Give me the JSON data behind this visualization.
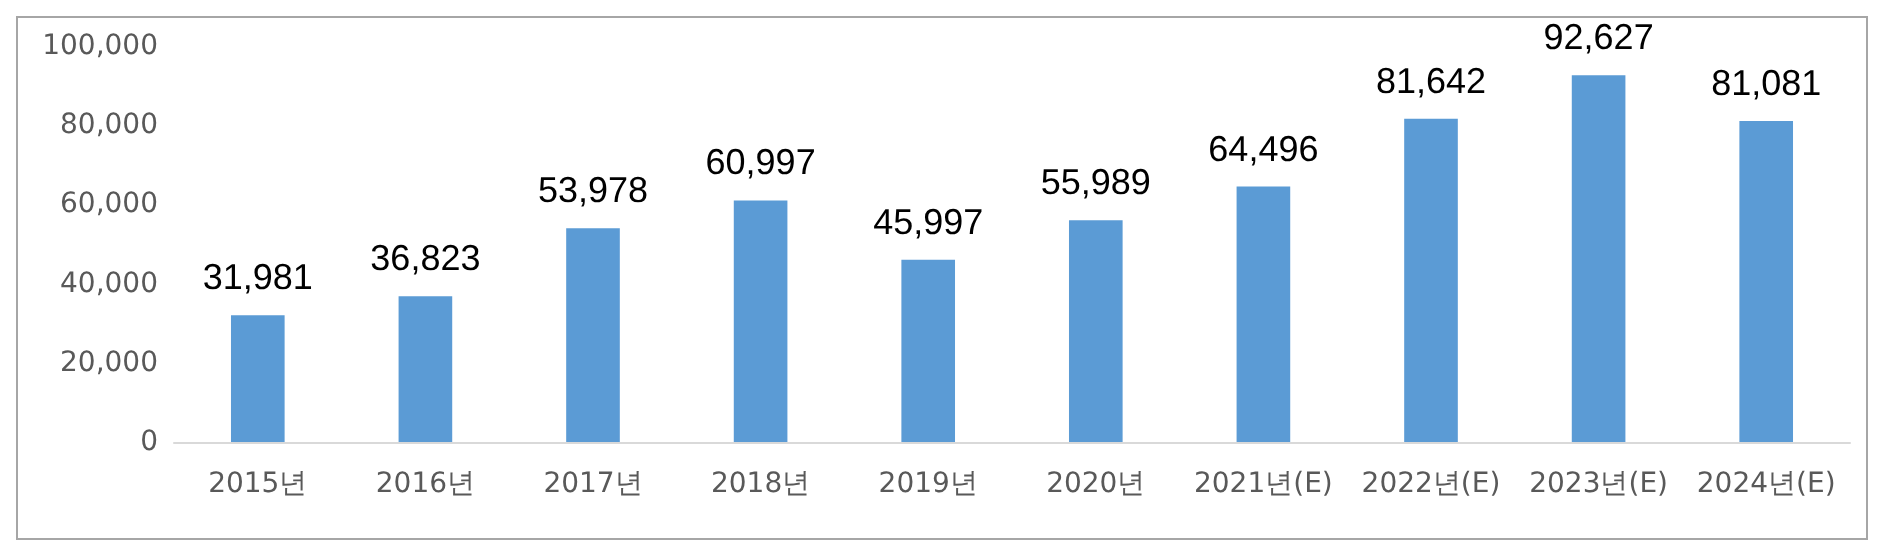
{
  "chart_data": {
    "type": "bar",
    "categories": [
      "2015년",
      "2016년",
      "2017년",
      "2018년",
      "2019년",
      "2020년",
      "2021년(E)",
      "2022년(E)",
      "2023년(E)",
      "2024년(E)"
    ],
    "values": [
      31981,
      36823,
      53978,
      60997,
      45997,
      55989,
      64496,
      81642,
      92627,
      81081
    ],
    "value_labels": [
      "31,981",
      "36,823",
      "53,978",
      "60,997",
      "45,997",
      "55,989",
      "64,496",
      "81,642",
      "92,627",
      "81,081"
    ],
    "color": "#5b9bd5",
    "ylim": [
      0,
      100000
    ],
    "yticks": [
      0,
      {
        "value": 20000,
        "label": "20,000"
      },
      {
        "value": 40000,
        "label": "40,000"
      },
      {
        "value": 60000,
        "label": "60,000"
      },
      {
        "value": 80000,
        "label": "80,000"
      },
      {
        "value": 100000,
        "label": "100,000"
      }
    ],
    "grid": false
  }
}
